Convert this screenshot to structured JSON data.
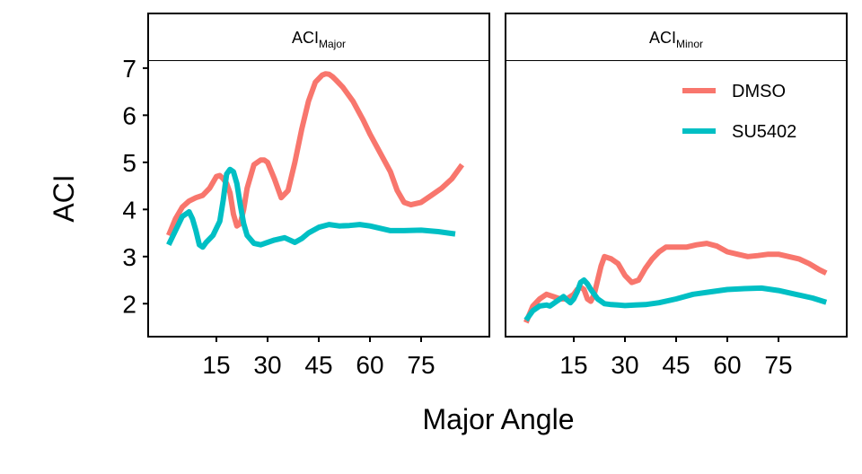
{
  "chart_data": {
    "type": "line",
    "xlabel": "Major Angle",
    "ylabel": "ACI",
    "x_ticks": [
      15,
      30,
      45,
      60,
      75
    ],
    "y_ticks": [
      2,
      3,
      4,
      5,
      6,
      7
    ],
    "xlim": [
      -5,
      95
    ],
    "ylim": [
      1.3,
      7.15
    ],
    "legend": {
      "position": "top-right of right panel",
      "entries": [
        {
          "name": "DMSO",
          "color": "#F8766D"
        },
        {
          "name": "SU5402",
          "color": "#00BFC4"
        }
      ]
    },
    "panels": [
      {
        "strip": {
          "base": "ACI",
          "sub": "Major"
        },
        "series": [
          {
            "name": "DMSO",
            "color": "#F8766D",
            "x": [
              1,
              3,
              5,
              7,
              9,
              11,
              13,
              15,
              16,
              17,
              18,
              19,
              20,
              21,
              22,
              23,
              24,
              26,
              28,
              29,
              30,
              32,
              34,
              36,
              38,
              40,
              42,
              44,
              46,
              47,
              48,
              49,
              50,
              52,
              55,
              58,
              60,
              63,
              66,
              68,
              70,
              72,
              75,
              78,
              81,
              84,
              87
            ],
            "y": [
              3.45,
              3.8,
              4.05,
              4.18,
              4.25,
              4.3,
              4.45,
              4.7,
              4.72,
              4.65,
              4.55,
              4.35,
              3.9,
              3.65,
              3.7,
              4.0,
              4.45,
              4.95,
              5.05,
              5.05,
              5.0,
              4.65,
              4.25,
              4.4,
              5.0,
              5.7,
              6.3,
              6.7,
              6.85,
              6.88,
              6.87,
              6.82,
              6.75,
              6.6,
              6.3,
              5.9,
              5.6,
              5.2,
              4.8,
              4.4,
              4.15,
              4.1,
              4.15,
              4.3,
              4.45,
              4.65,
              4.95
            ]
          },
          {
            "name": "SU5402",
            "color": "#00BFC4",
            "x": [
              1,
              3,
              5,
              7,
              8,
              9,
              10,
              11,
              12,
              14,
              16,
              17,
              18,
              19,
              20,
              21,
              22,
              23,
              24,
              26,
              28,
              30,
              32,
              35,
              38,
              40,
              42,
              45,
              48,
              51,
              54,
              57,
              60,
              63,
              66,
              70,
              75,
              80,
              85
            ],
            "y": [
              3.25,
              3.55,
              3.85,
              3.95,
              3.8,
              3.55,
              3.25,
              3.2,
              3.3,
              3.45,
              3.75,
              4.2,
              4.75,
              4.85,
              4.8,
              4.55,
              4.1,
              3.7,
              3.45,
              3.28,
              3.25,
              3.3,
              3.35,
              3.4,
              3.3,
              3.38,
              3.5,
              3.62,
              3.68,
              3.65,
              3.66,
              3.68,
              3.65,
              3.6,
              3.55,
              3.55,
              3.56,
              3.53,
              3.48
            ]
          }
        ]
      },
      {
        "strip": {
          "base": "ACI",
          "sub": "Minor"
        },
        "series": [
          {
            "name": "DMSO",
            "color": "#F8766D",
            "x": [
              1,
              3,
              5,
              7,
              9,
              11,
              13,
              15,
              16,
              17,
              18,
              19,
              20,
              21,
              22,
              23,
              24,
              26,
              28,
              30,
              32,
              34,
              36,
              38,
              40,
              42,
              45,
              48,
              51,
              54,
              57,
              60,
              63,
              66,
              69,
              72,
              75,
              78,
              81,
              84,
              87,
              89
            ],
            "y": [
              1.6,
              1.95,
              2.1,
              2.2,
              2.15,
              2.1,
              2.1,
              2.2,
              2.3,
              2.35,
              2.3,
              2.1,
              2.05,
              2.2,
              2.5,
              2.8,
              3.0,
              2.95,
              2.85,
              2.6,
              2.45,
              2.5,
              2.75,
              2.95,
              3.1,
              3.2,
              3.2,
              3.2,
              3.25,
              3.28,
              3.22,
              3.1,
              3.05,
              3.0,
              3.02,
              3.05,
              3.05,
              3.0,
              2.95,
              2.85,
              2.72,
              2.65
            ]
          },
          {
            "name": "SU5402",
            "color": "#00BFC4",
            "x": [
              1,
              3,
              5,
              7,
              8,
              9,
              10,
              11,
              12,
              13,
              14,
              15,
              16,
              17,
              18,
              19,
              20,
              21,
              22,
              23,
              24,
              26,
              28,
              30,
              33,
              36,
              40,
              45,
              50,
              55,
              60,
              65,
              70,
              75,
              80,
              85,
              89
            ],
            "y": [
              1.65,
              1.85,
              1.95,
              1.97,
              1.95,
              2.0,
              2.05,
              2.1,
              2.15,
              2.08,
              2.02,
              2.1,
              2.25,
              2.45,
              2.5,
              2.42,
              2.3,
              2.2,
              2.1,
              2.05,
              2.0,
              1.98,
              1.97,
              1.96,
              1.97,
              1.98,
              2.02,
              2.1,
              2.2,
              2.25,
              2.3,
              2.32,
              2.33,
              2.28,
              2.2,
              2.12,
              2.03
            ]
          }
        ]
      }
    ]
  }
}
